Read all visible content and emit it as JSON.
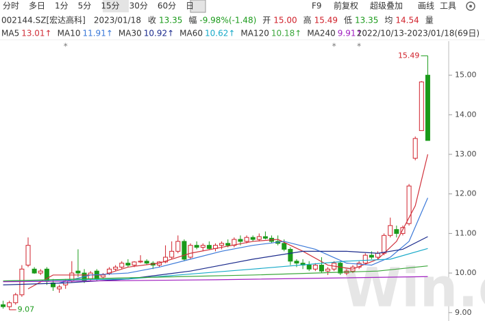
{
  "toolbar": {
    "tabs": [
      "分时",
      "多日",
      "1分",
      "5分",
      "15分",
      "30分",
      "60分",
      "日"
    ],
    "tools": [
      "F9",
      "前复权",
      "超级叠加",
      "画线",
      "工具"
    ]
  },
  "info": {
    "symbol": "002144.SZ[宏达高科]",
    "date": "2023/01/18",
    "items": [
      {
        "label": "收",
        "value": "13.35",
        "color": "#1a9a1a"
      },
      {
        "label": "幅",
        "value": "-9.98%(-1.48)",
        "color": "#1a9a1a"
      },
      {
        "label": "开",
        "value": "15.00",
        "color": "#d0202a"
      },
      {
        "label": "高",
        "value": "15.49",
        "color": "#d0202a"
      },
      {
        "label": "低",
        "value": "13.35",
        "color": "#1a9a1a"
      },
      {
        "label": "均",
        "value": "14.54",
        "color": "#d0202a"
      },
      {
        "label": "量"
      }
    ]
  },
  "chart_data": {
    "type": "candlestick",
    "subtitle": "2022/10/13-2023/01/18(69日)",
    "watermark": "Win.d",
    "xlim": [
      -0.5,
      68.5
    ],
    "ylim": [
      8.84,
      15.86
    ],
    "yticks": [
      {
        "value": 9,
        "label": "9.00"
      },
      {
        "value": 10,
        "label": "10.00"
      },
      {
        "value": 11,
        "label": "11.00"
      },
      {
        "value": 12,
        "label": "12.00"
      },
      {
        "value": 13,
        "label": "13.00"
      },
      {
        "value": 14,
        "label": "14.00"
      },
      {
        "value": 15,
        "label": "15.00"
      }
    ],
    "up_color": "#d0202a",
    "down_color": "#1a9a1a",
    "candles": [
      [
        9.2,
        9.3,
        9.1,
        9.15
      ],
      [
        9.15,
        9.3,
        9.07,
        9.25
      ],
      [
        9.25,
        9.5,
        9.2,
        9.45
      ],
      [
        9.45,
        10.2,
        9.4,
        10.1
      ],
      [
        10.2,
        10.9,
        10.15,
        10.7
      ],
      [
        10.1,
        10.15,
        9.98,
        10.0
      ],
      [
        10.0,
        10.1,
        9.95,
        10.05
      ],
      [
        10.1,
        10.15,
        9.7,
        9.8
      ],
      [
        9.75,
        9.85,
        9.55,
        9.65
      ],
      [
        9.6,
        9.7,
        9.5,
        9.65
      ],
      [
        9.7,
        9.85,
        9.6,
        9.8
      ],
      [
        9.8,
        10.3,
        9.75,
        10.0
      ],
      [
        10.05,
        10.6,
        9.9,
        10.0
      ],
      [
        10.0,
        10.1,
        9.75,
        9.8
      ],
      [
        9.85,
        10.05,
        9.8,
        10.0
      ],
      [
        10.05,
        10.1,
        9.8,
        9.85
      ],
      [
        9.9,
        10.0,
        9.85,
        9.95
      ],
      [
        10.0,
        10.15,
        9.95,
        10.1
      ],
      [
        10.1,
        10.2,
        10.05,
        10.15
      ],
      [
        10.15,
        10.3,
        10.1,
        10.25
      ],
      [
        10.25,
        10.35,
        10.15,
        10.2
      ],
      [
        10.2,
        10.3,
        10.15,
        10.28
      ],
      [
        10.28,
        10.45,
        10.25,
        10.3
      ],
      [
        10.3,
        10.35,
        10.2,
        10.25
      ],
      [
        10.25,
        10.3,
        10.1,
        10.2
      ],
      [
        10.2,
        10.3,
        10.15,
        10.28
      ],
      [
        10.28,
        10.7,
        10.25,
        10.4
      ],
      [
        10.4,
        10.8,
        10.35,
        10.55
      ],
      [
        10.55,
        10.95,
        10.5,
        10.8
      ],
      [
        10.8,
        10.85,
        10.3,
        10.35
      ],
      [
        10.4,
        10.75,
        10.35,
        10.7
      ],
      [
        10.7,
        10.8,
        10.6,
        10.65
      ],
      [
        10.65,
        10.75,
        10.55,
        10.7
      ],
      [
        10.7,
        10.8,
        10.6,
        10.62
      ],
      [
        10.62,
        10.75,
        10.55,
        10.7
      ],
      [
        10.7,
        10.8,
        10.6,
        10.75
      ],
      [
        10.75,
        10.85,
        10.65,
        10.7
      ],
      [
        10.7,
        10.9,
        10.65,
        10.85
      ],
      [
        10.85,
        10.95,
        10.7,
        10.8
      ],
      [
        10.8,
        10.95,
        10.75,
        10.9
      ],
      [
        10.9,
        10.95,
        10.8,
        10.85
      ],
      [
        10.85,
        11.0,
        10.8,
        10.92
      ],
      [
        10.92,
        11.05,
        10.85,
        10.88
      ],
      [
        10.88,
        10.95,
        10.75,
        10.8
      ],
      [
        10.8,
        10.95,
        10.7,
        10.75
      ],
      [
        10.75,
        10.85,
        10.55,
        10.6
      ],
      [
        10.6,
        10.65,
        10.2,
        10.3
      ],
      [
        10.3,
        10.35,
        10.15,
        10.25
      ],
      [
        10.25,
        10.35,
        10.1,
        10.2
      ],
      [
        10.2,
        10.3,
        10.05,
        10.1
      ],
      [
        10.1,
        10.25,
        10.05,
        10.2
      ],
      [
        10.2,
        10.4,
        10.0,
        10.05
      ],
      [
        10.05,
        10.15,
        9.95,
        10.1
      ],
      [
        10.1,
        10.3,
        10.05,
        10.25
      ],
      [
        10.25,
        10.3,
        9.95,
        10.0
      ],
      [
        10.0,
        10.1,
        9.95,
        10.05
      ],
      [
        10.05,
        10.2,
        10.0,
        10.15
      ],
      [
        10.15,
        10.3,
        10.1,
        10.25
      ],
      [
        10.25,
        10.5,
        10.2,
        10.45
      ],
      [
        10.45,
        10.55,
        10.35,
        10.4
      ],
      [
        10.4,
        10.55,
        10.35,
        10.5
      ],
      [
        10.5,
        11.0,
        10.45,
        10.95
      ],
      [
        10.95,
        11.4,
        10.9,
        11.2
      ],
      [
        11.1,
        11.2,
        10.9,
        11.0
      ],
      [
        11.0,
        11.2,
        10.95,
        11.15
      ],
      [
        11.25,
        12.25,
        11.2,
        12.2
      ],
      [
        12.9,
        13.45,
        12.85,
        13.4
      ],
      [
        13.6,
        14.85,
        13.6,
        14.83
      ],
      [
        15.0,
        15.49,
        13.35,
        13.35
      ]
    ],
    "series": [
      {
        "name": "MA5",
        "legend_value": "13.01↑",
        "color": "#d0303a",
        "x": [
          4,
          8,
          12,
          16,
          20,
          25,
          30,
          35,
          40,
          44,
          48,
          52,
          56,
          60,
          63,
          66,
          68
        ],
        "values": [
          9.6,
          9.95,
          9.95,
          9.95,
          10.15,
          10.25,
          10.5,
          10.65,
          10.8,
          10.85,
          10.55,
          10.2,
          10.1,
          10.35,
          10.8,
          11.7,
          13.0
        ]
      },
      {
        "name": "MA10",
        "legend_value": "11.91↑",
        "color": "#3a78d8",
        "x": [
          9,
          14,
          20,
          25,
          30,
          35,
          40,
          45,
          50,
          55,
          59,
          62,
          65,
          68
        ],
        "values": [
          9.75,
          9.95,
          10.0,
          10.15,
          10.35,
          10.55,
          10.7,
          10.8,
          10.6,
          10.25,
          10.2,
          10.4,
          10.8,
          11.9
        ]
      },
      {
        "name": "MA30",
        "legend_value": "10.92↑",
        "color": "#1a2a8c",
        "x": [
          0,
          10,
          20,
          30,
          40,
          48,
          55,
          60,
          64,
          68
        ],
        "values": [
          9.7,
          9.75,
          9.85,
          10.05,
          10.35,
          10.55,
          10.55,
          10.5,
          10.6,
          10.92
        ]
      },
      {
        "name": "MA60",
        "legend_value": "10.62↑",
        "color": "#16a9c8",
        "x": [
          0,
          20,
          40,
          55,
          62,
          68
        ],
        "values": [
          9.8,
          9.85,
          10.1,
          10.3,
          10.35,
          10.62
        ]
      },
      {
        "name": "MA120",
        "legend_value": "10.18↑",
        "color": "#3aa63a",
        "x": [
          0,
          20,
          40,
          60,
          68
        ],
        "values": [
          9.8,
          9.88,
          9.95,
          10.05,
          10.18
        ]
      },
      {
        "name": "MA240",
        "legend_value": "9.91↑",
        "color": "#a020c0",
        "x": [
          0,
          34,
          68
        ],
        "values": [
          9.78,
          9.83,
          9.91
        ]
      }
    ],
    "annotations": [
      {
        "label": "15.49",
        "value": 15.49,
        "x": 68
      },
      {
        "label": "9.07",
        "value": 9.07,
        "x": 1
      }
    ],
    "event_markers": [
      {
        "label": "*",
        "x": 10
      },
      {
        "label": "*",
        "x": 53
      },
      {
        "label": "*",
        "x": 57
      }
    ]
  }
}
